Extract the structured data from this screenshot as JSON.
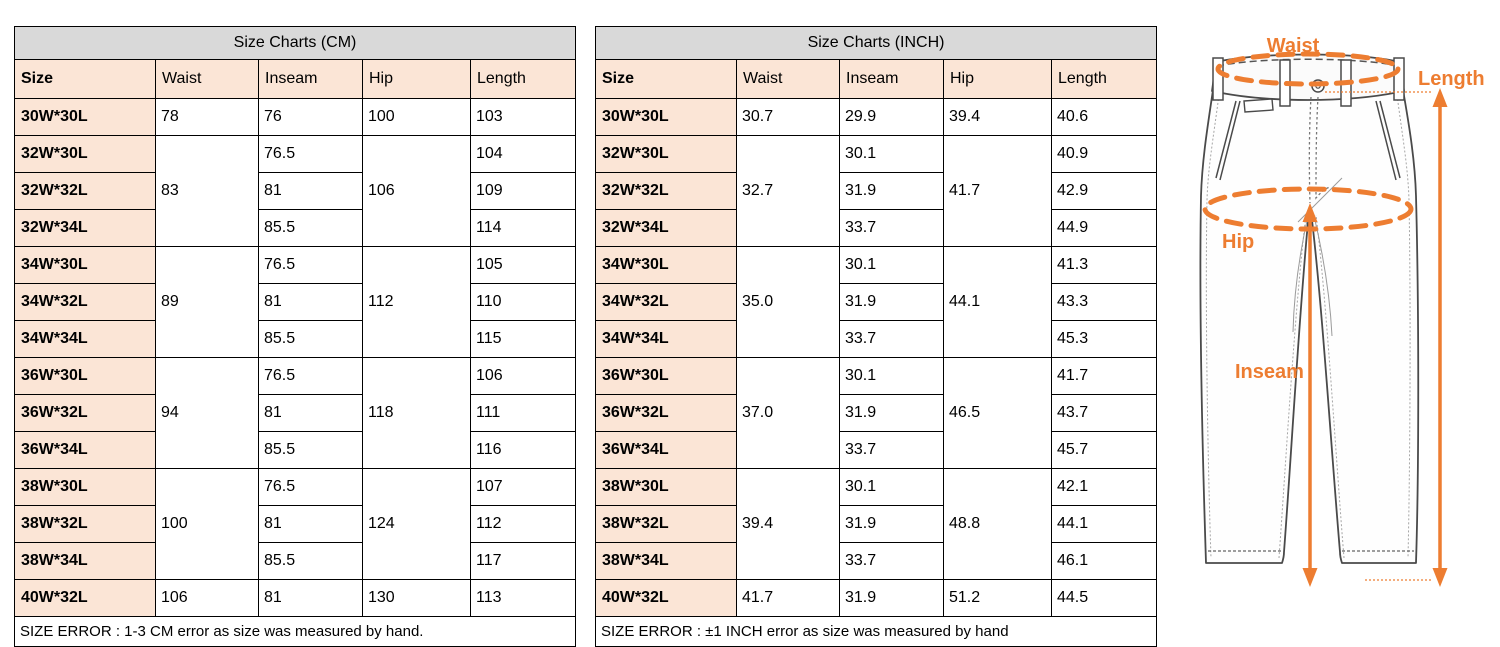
{
  "colors": {
    "title_bg": "#d9d9d9",
    "header_bg": "#fbe5d6",
    "border": "#000000",
    "annotation_orange": "#ED7D31",
    "sketch_gray": "#4a4a4a"
  },
  "tables": [
    {
      "id": "cm",
      "title": "Size Charts (CM)",
      "columns": [
        "Size",
        "Waist",
        "Inseam",
        "Hip",
        "Length"
      ],
      "rows": [
        [
          {
            "v": "30W*30L",
            "h": true
          },
          {
            "v": "78"
          },
          {
            "v": "76"
          },
          {
            "v": "100"
          },
          {
            "v": "103"
          }
        ],
        [
          {
            "v": "32W*30L",
            "h": true
          },
          {
            "v": "83",
            "rs": 3
          },
          {
            "v": "76.5"
          },
          {
            "v": "106",
            "rs": 3
          },
          {
            "v": "104"
          }
        ],
        [
          {
            "v": "32W*32L",
            "h": true
          },
          {
            "v": "81"
          },
          {
            "v": "109"
          }
        ],
        [
          {
            "v": "32W*34L",
            "h": true
          },
          {
            "v": "85.5"
          },
          {
            "v": "114"
          }
        ],
        [
          {
            "v": "34W*30L",
            "h": true
          },
          {
            "v": "89",
            "rs": 3
          },
          {
            "v": "76.5"
          },
          {
            "v": "112",
            "rs": 3
          },
          {
            "v": "105"
          }
        ],
        [
          {
            "v": "34W*32L",
            "h": true
          },
          {
            "v": "81"
          },
          {
            "v": "110"
          }
        ],
        [
          {
            "v": "34W*34L",
            "h": true
          },
          {
            "v": "85.5"
          },
          {
            "v": "115"
          }
        ],
        [
          {
            "v": "36W*30L",
            "h": true
          },
          {
            "v": "94",
            "rs": 3
          },
          {
            "v": "76.5"
          },
          {
            "v": "118",
            "rs": 3
          },
          {
            "v": "106"
          }
        ],
        [
          {
            "v": "36W*32L",
            "h": true
          },
          {
            "v": "81"
          },
          {
            "v": "111"
          }
        ],
        [
          {
            "v": "36W*34L",
            "h": true
          },
          {
            "v": "85.5"
          },
          {
            "v": "116"
          }
        ],
        [
          {
            "v": "38W*30L",
            "h": true
          },
          {
            "v": "100",
            "rs": 3
          },
          {
            "v": "76.5"
          },
          {
            "v": "124",
            "rs": 3
          },
          {
            "v": "107"
          }
        ],
        [
          {
            "v": "38W*32L",
            "h": true
          },
          {
            "v": "81"
          },
          {
            "v": "112"
          }
        ],
        [
          {
            "v": "38W*34L",
            "h": true
          },
          {
            "v": "85.5"
          },
          {
            "v": "117"
          }
        ],
        [
          {
            "v": "40W*32L",
            "h": true
          },
          {
            "v": "106"
          },
          {
            "v": "81"
          },
          {
            "v": "130"
          },
          {
            "v": "113"
          }
        ]
      ],
      "footer": "SIZE ERROR : 1-3 CM error as size was measured by hand."
    },
    {
      "id": "inch",
      "title": "Size Charts (INCH)",
      "columns": [
        "Size",
        "Waist",
        "Inseam",
        "Hip",
        "Length"
      ],
      "rows": [
        [
          {
            "v": "30W*30L",
            "h": true
          },
          {
            "v": "30.7"
          },
          {
            "v": "29.9"
          },
          {
            "v": "39.4"
          },
          {
            "v": "40.6"
          }
        ],
        [
          {
            "v": "32W*30L",
            "h": true
          },
          {
            "v": "32.7",
            "rs": 3
          },
          {
            "v": "30.1"
          },
          {
            "v": "41.7",
            "rs": 3
          },
          {
            "v": "40.9"
          }
        ],
        [
          {
            "v": "32W*32L",
            "h": true
          },
          {
            "v": "31.9"
          },
          {
            "v": "42.9"
          }
        ],
        [
          {
            "v": "32W*34L",
            "h": true
          },
          {
            "v": "33.7"
          },
          {
            "v": "44.9"
          }
        ],
        [
          {
            "v": "34W*30L",
            "h": true
          },
          {
            "v": "35.0",
            "rs": 3
          },
          {
            "v": "30.1"
          },
          {
            "v": "44.1",
            "rs": 3
          },
          {
            "v": "41.3"
          }
        ],
        [
          {
            "v": "34W*32L",
            "h": true
          },
          {
            "v": "31.9"
          },
          {
            "v": "43.3"
          }
        ],
        [
          {
            "v": "34W*34L",
            "h": true
          },
          {
            "v": "33.7"
          },
          {
            "v": "45.3"
          }
        ],
        [
          {
            "v": "36W*30L",
            "h": true
          },
          {
            "v": "37.0",
            "rs": 3
          },
          {
            "v": "30.1"
          },
          {
            "v": "46.5",
            "rs": 3
          },
          {
            "v": "41.7"
          }
        ],
        [
          {
            "v": "36W*32L",
            "h": true
          },
          {
            "v": "31.9"
          },
          {
            "v": "43.7"
          }
        ],
        [
          {
            "v": "36W*34L",
            "h": true
          },
          {
            "v": "33.7"
          },
          {
            "v": "45.7"
          }
        ],
        [
          {
            "v": "38W*30L",
            "h": true
          },
          {
            "v": "39.4",
            "rs": 3
          },
          {
            "v": "30.1"
          },
          {
            "v": "48.8",
            "rs": 3
          },
          {
            "v": "42.1"
          }
        ],
        [
          {
            "v": "38W*32L",
            "h": true
          },
          {
            "v": "31.9"
          },
          {
            "v": "44.1"
          }
        ],
        [
          {
            "v": "38W*34L",
            "h": true
          },
          {
            "v": "33.7"
          },
          {
            "v": "46.1"
          }
        ],
        [
          {
            "v": "40W*32L",
            "h": true
          },
          {
            "v": "41.7"
          },
          {
            "v": "31.9"
          },
          {
            "v": "51.2"
          },
          {
            "v": "44.5"
          }
        ]
      ],
      "footer": "SIZE ERROR : ±1 INCH error as size was measured by hand"
    }
  ],
  "diagram": {
    "labels": {
      "waist": "Waist",
      "length": "Length",
      "hip": "Hip",
      "inseam": "Inseam"
    }
  }
}
